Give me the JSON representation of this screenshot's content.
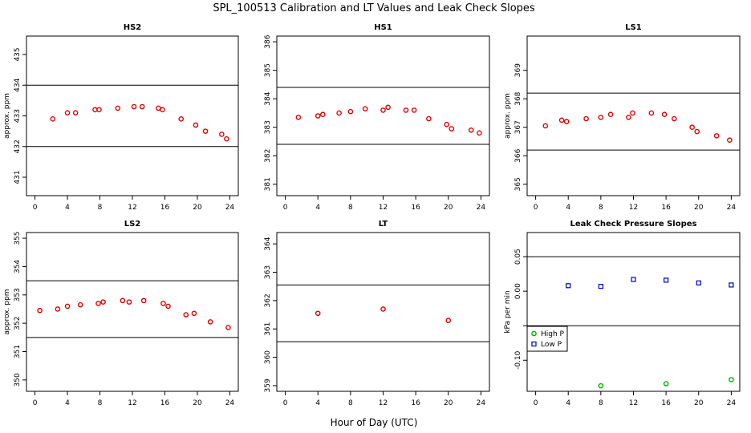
{
  "figure": {
    "title": "SPL_100513  Calibration and LT Values and Leak Check Slopes",
    "xlabel": "Hour of Day (UTC)"
  },
  "colors": {
    "primary": "#e00000",
    "secondary": "#0000cc",
    "tertiary": "#00b000"
  },
  "chart_data": [
    {
      "type": "scatter",
      "title": "HS2",
      "ylabel": "approx. ppm",
      "xlim": [
        0,
        24
      ],
      "ylim": [
        430.4,
        435.6
      ],
      "xticks": [
        0,
        4,
        8,
        12,
        16,
        20,
        24
      ],
      "yticks": [
        431,
        432,
        433,
        434,
        435
      ],
      "hlines": [
        432,
        434
      ],
      "series": [
        {
          "color": "#e00000",
          "x": [
            2.2,
            4.0,
            5.0,
            7.4,
            7.9,
            10.2,
            12.2,
            13.2,
            15.2,
            15.7,
            18.0,
            19.8,
            21.0,
            23.0,
            23.6
          ],
          "y": [
            432.9,
            433.1,
            433.1,
            433.2,
            433.2,
            433.25,
            433.3,
            433.3,
            433.25,
            433.2,
            432.9,
            432.7,
            432.5,
            432.4,
            432.25
          ]
        }
      ]
    },
    {
      "type": "scatter",
      "title": "HS1",
      "ylabel": "",
      "xlim": [
        0,
        24
      ],
      "ylim": [
        380.6,
        386.2
      ],
      "xticks": [
        0,
        4,
        8,
        12,
        16,
        20,
        24
      ],
      "yticks": [
        381,
        382,
        383,
        384,
        385,
        386
      ],
      "hlines": [
        382.4,
        384.4
      ],
      "series": [
        {
          "color": "#e00000",
          "x": [
            1.6,
            4.0,
            4.6,
            6.6,
            8.0,
            9.8,
            12.0,
            12.6,
            14.8,
            15.8,
            17.6,
            19.8,
            20.4,
            22.8,
            23.8
          ],
          "y": [
            383.35,
            383.4,
            383.45,
            383.5,
            383.55,
            383.65,
            383.6,
            383.7,
            383.6,
            383.6,
            383.3,
            383.1,
            382.95,
            382.9,
            382.8
          ]
        }
      ]
    },
    {
      "type": "scatter",
      "title": "LS1",
      "ylabel": "approx. ppm",
      "xlim": [
        0,
        24
      ],
      "ylim": [
        364.6,
        370.2
      ],
      "xticks": [
        0,
        4,
        8,
        12,
        16,
        20,
        24
      ],
      "yticks": [
        365,
        366,
        367,
        368,
        369
      ],
      "hlines": [
        366.2,
        368.2
      ],
      "series": [
        {
          "color": "#e00000",
          "x": [
            1.2,
            3.2,
            3.8,
            6.2,
            8.0,
            9.2,
            11.4,
            11.9,
            14.2,
            15.8,
            17.0,
            19.2,
            19.8,
            22.2,
            23.8
          ],
          "y": [
            367.05,
            367.25,
            367.2,
            367.3,
            367.35,
            367.45,
            367.35,
            367.5,
            367.5,
            367.45,
            367.3,
            367.0,
            366.85,
            366.7,
            366.55
          ]
        }
      ]
    },
    {
      "type": "scatter",
      "title": "LS2",
      "ylabel": "approx. ppm",
      "xlim": [
        0,
        24
      ],
      "ylim": [
        349.6,
        355.2
      ],
      "xticks": [
        0,
        4,
        8,
        12,
        16,
        20,
        24
      ],
      "yticks": [
        350,
        351,
        352,
        353,
        354,
        355
      ],
      "hlines": [
        351.5,
        353.5
      ],
      "series": [
        {
          "color": "#e00000",
          "x": [
            0.6,
            2.8,
            4.0,
            5.6,
            7.8,
            8.4,
            10.8,
            11.6,
            13.4,
            15.8,
            16.4,
            18.6,
            19.6,
            21.6,
            23.8
          ],
          "y": [
            352.45,
            352.5,
            352.6,
            352.65,
            352.7,
            352.75,
            352.8,
            352.75,
            352.8,
            352.7,
            352.6,
            352.3,
            352.35,
            352.05,
            351.85
          ]
        }
      ]
    },
    {
      "type": "scatter",
      "title": "LT",
      "ylabel": "",
      "xlim": [
        0,
        24
      ],
      "ylim": [
        358.8,
        364.4
      ],
      "xticks": [
        0,
        4,
        8,
        12,
        16,
        20,
        24
      ],
      "yticks": [
        359,
        360,
        361,
        362,
        363,
        364
      ],
      "hlines": [
        360.55,
        362.55
      ],
      "series": [
        {
          "color": "#e00000",
          "x": [
            4.0,
            12.0,
            20.0
          ],
          "y": [
            361.55,
            361.7,
            361.3
          ]
        }
      ]
    },
    {
      "type": "scatter",
      "title": "Leak Check Pressure Slopes",
      "ylabel": "kPa per min",
      "xlim": [
        0,
        24
      ],
      "ylim": [
        -0.145,
        0.085
      ],
      "xticks": [
        0,
        4,
        8,
        12,
        16,
        20,
        24
      ],
      "yticks": [
        -0.1,
        -0.05,
        0.0,
        0.05
      ],
      "ytick_labels": [
        "-0.10",
        "",
        "0.00",
        "0.05"
      ],
      "hlines": [
        -0.05,
        0.05
      ],
      "legend": {
        "position": "left",
        "entries": [
          "High P",
          "Low P"
        ]
      },
      "series": [
        {
          "name": "High P",
          "marker": "circle",
          "color": "#00b000",
          "x": [
            8,
            16,
            24
          ],
          "y": [
            -0.137,
            -0.134,
            -0.128
          ]
        },
        {
          "name": "Low P",
          "marker": "square",
          "color": "#0000cc",
          "x": [
            4,
            8,
            12,
            16,
            20,
            24
          ],
          "y": [
            0.008,
            0.007,
            0.017,
            0.016,
            0.012,
            0.009
          ]
        }
      ]
    }
  ]
}
